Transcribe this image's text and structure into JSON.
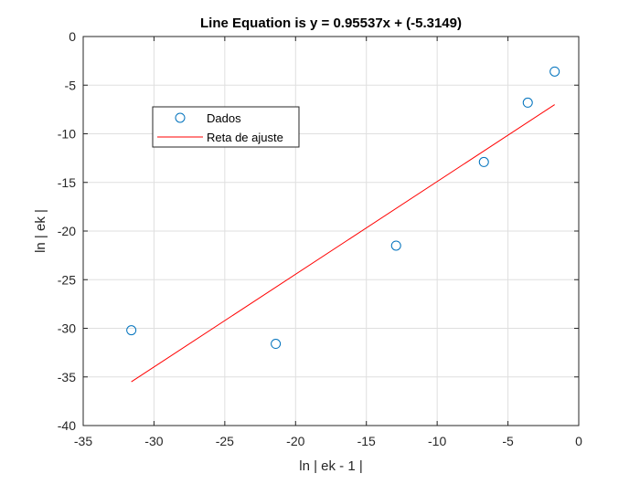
{
  "chart_data": {
    "type": "scatter",
    "title": "Line Equation is y = 0.95537x + (-5.3149)",
    "xlabel": "ln | ek - 1 |",
    "ylabel": "ln | ek |",
    "xlim": [
      -35,
      0
    ],
    "ylim": [
      -40,
      0
    ],
    "xticks": [
      -35,
      -30,
      -25,
      -20,
      -15,
      -10,
      -5,
      0
    ],
    "yticks": [
      -40,
      -35,
      -30,
      -25,
      -20,
      -15,
      -10,
      -5,
      0
    ],
    "grid": true,
    "legend_position": "top-left",
    "series": [
      {
        "name": "Dados",
        "kind": "markers",
        "marker": "circle",
        "color": "#0072BD",
        "x": [
          -31.6,
          -21.4,
          -12.9,
          -6.7,
          -3.6,
          -1.7
        ],
        "y": [
          -30.2,
          -31.6,
          -21.5,
          -12.9,
          -6.8,
          -3.6
        ]
      },
      {
        "name": "Reta de ajuste",
        "kind": "line",
        "color": "#FF0000",
        "x": [
          -31.6,
          -1.7
        ],
        "y": [
          -35.5,
          -7.0
        ]
      }
    ]
  }
}
